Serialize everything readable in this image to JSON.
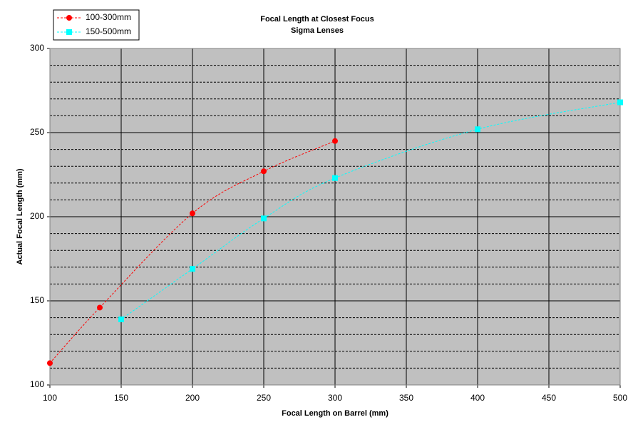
{
  "chart_data": {
    "type": "line",
    "title": "Focal Length at Closest Focus",
    "subtitle": "Sigma Lenses",
    "x_label": "Focal Length on Barrel (mm)",
    "y_label": "Actual Focal Length (mm)",
    "xlim": [
      100,
      500
    ],
    "xticks": [
      100,
      150,
      200,
      250,
      300,
      350,
      400,
      450,
      500
    ],
    "ylim": [
      100,
      300
    ],
    "yticks": [
      100,
      150,
      200,
      250,
      300
    ],
    "yminorticks": [
      110,
      120,
      130,
      140,
      160,
      170,
      180,
      190,
      210,
      220,
      230,
      240,
      260,
      270,
      280,
      290
    ],
    "grid": true,
    "legend": "top-left",
    "series": [
      {
        "name": "100-300mm",
        "color": "#ff0000",
        "x": [
          100,
          135,
          200,
          250,
          300
        ],
        "values": [
          113,
          146,
          202,
          227,
          245
        ]
      },
      {
        "name": "150-500mm",
        "color": "#00ffff",
        "x": [
          150,
          200,
          250,
          300,
          400,
          500
        ],
        "values": [
          139,
          169,
          199,
          223,
          252,
          268
        ]
      }
    ]
  }
}
